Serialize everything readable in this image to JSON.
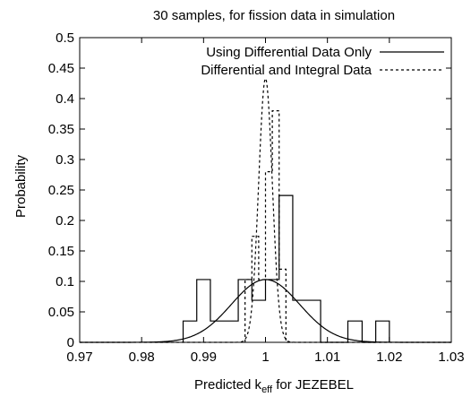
{
  "chart_data": {
    "type": "line",
    "title": "30 samples, for fission data in simulation",
    "xlabel_main": "Predicted k",
    "xlabel_sub": "eff",
    "xlabel_tail": " for JEZEBEL",
    "ylabel": "Probability",
    "xlim": [
      0.97,
      1.03
    ],
    "ylim": [
      0,
      0.5
    ],
    "x_ticks": [
      0.97,
      0.98,
      0.99,
      1.0,
      1.01,
      1.02,
      1.03
    ],
    "x_tick_labels": [
      "0.97",
      "0.98",
      "0.99",
      "1",
      "1.01",
      "1.02",
      "1.03"
    ],
    "y_ticks": [
      0,
      0.05,
      0.1,
      0.15,
      0.2,
      0.25,
      0.3,
      0.35,
      0.4,
      0.45,
      0.5
    ],
    "y_tick_labels": [
      "0",
      "0.05",
      "0.1",
      "0.15",
      "0.2",
      "0.25",
      "0.3",
      "0.35",
      "0.4",
      "0.45",
      "0.5"
    ],
    "legend_position": "top-right",
    "grid": false,
    "series": [
      {
        "name": "Using Differential Data Only",
        "style": "solid",
        "histogram": {
          "bin_edges": [
            0.9867,
            0.9889,
            0.9911,
            0.9933,
            0.9956,
            0.9978,
            1.0,
            1.0022,
            1.0044,
            1.0067,
            1.0089,
            1.0111,
            1.0133,
            1.0156,
            1.0178,
            1.02
          ],
          "values": [
            0.035,
            0.103,
            0.035,
            0.035,
            0.103,
            0.069,
            0.103,
            0.241,
            0.069,
            0.069,
            0.0,
            0.0,
            0.035,
            0.0,
            0.035
          ]
        },
        "gaussian": {
          "mean": 1.0,
          "sigma": 0.0055,
          "peak": 0.103
        }
      },
      {
        "name": "Differential and Integral Data",
        "style": "dotted",
        "histogram": {
          "bin_edges": [
            0.9967,
            0.9978,
            0.9989,
            1.0,
            1.0011,
            1.0022,
            1.0033,
            1.0044
          ],
          "values": [
            0.103,
            0.174,
            0.103,
            0.28,
            0.38,
            0.12,
            0.0
          ]
        },
        "gaussian": {
          "mean": 1.0,
          "sigma": 0.0011,
          "peak": 0.433
        }
      }
    ]
  }
}
